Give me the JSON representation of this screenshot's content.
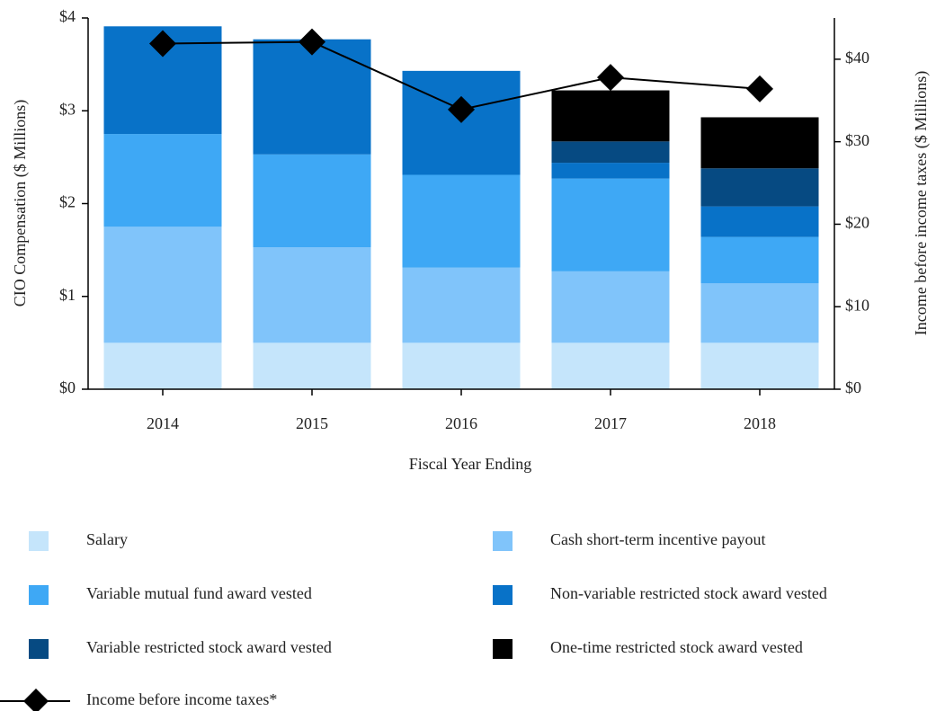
{
  "chart_data": {
    "type": "bar",
    "stacked": true,
    "x_label": "Fiscal Year Ending",
    "y_label": "CIO Compensation ($ Millions)",
    "y2_label": "Income before income taxes ($ Millions)",
    "categories": [
      "2014",
      "2015",
      "2016",
      "2017",
      "2018"
    ],
    "ylim": [
      0,
      4
    ],
    "yticks": [
      {
        "value": 0,
        "label": "$0"
      },
      {
        "value": 1,
        "label": "$1"
      },
      {
        "value": 2,
        "label": "$2"
      },
      {
        "value": 3,
        "label": "$3"
      },
      {
        "value": 4,
        "label": "$4"
      }
    ],
    "y2lim": [
      0,
      45
    ],
    "y2ticks": [
      {
        "value": 0,
        "label": "$0"
      },
      {
        "value": 10,
        "label": "$10"
      },
      {
        "value": 20,
        "label": "$20"
      },
      {
        "value": 30,
        "label": "$30"
      },
      {
        "value": 40,
        "label": "$40"
      }
    ],
    "series": [
      {
        "name": "Salary",
        "color": "#c5e5fb",
        "values": [
          0.5,
          0.5,
          0.5,
          0.5,
          0.5
        ]
      },
      {
        "name": "Cash short-term incentive payout",
        "color": "#80c4fa",
        "values": [
          1.25,
          1.03,
          0.81,
          0.77,
          0.64
        ]
      },
      {
        "name": "Variable mutual fund award vested",
        "color": "#3ea8f5",
        "values": [
          1.0,
          1.0,
          1.0,
          1.0,
          0.5
        ]
      },
      {
        "name": "Non-variable restricted stock award vested",
        "color": "#0872c8",
        "values": [
          1.16,
          1.24,
          1.12,
          0.17,
          0.33
        ]
      },
      {
        "name": "Variable restricted stock award vested",
        "color": "#064a82",
        "values": [
          0,
          0,
          0,
          0.23,
          0.41
        ]
      },
      {
        "name": "One-time restricted stock award vested",
        "color": "#000000",
        "values": [
          0,
          0,
          0,
          0.55,
          0.55
        ]
      },
      {
        "name": "Income before income taxes*",
        "color": "#000000",
        "type": "line",
        "axis": "y2",
        "values": [
          41.9,
          42.1,
          33.9,
          37.8,
          36.4
        ]
      }
    ]
  }
}
